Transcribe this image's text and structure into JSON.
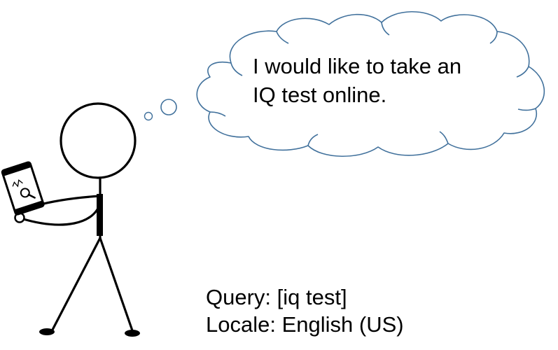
{
  "thought": {
    "line1": "I would like to take an",
    "line2": "IQ test online."
  },
  "query": {
    "label": "Query:",
    "value": "[iq test]"
  },
  "locale": {
    "label": "Locale:",
    "value": "English (US)"
  },
  "colors": {
    "cloud_stroke": "#41719c",
    "figure_stroke": "#000000",
    "background": "#ffffff"
  },
  "icons": {
    "person": "stick-figure",
    "device": "smartphone-with-magnifier"
  }
}
